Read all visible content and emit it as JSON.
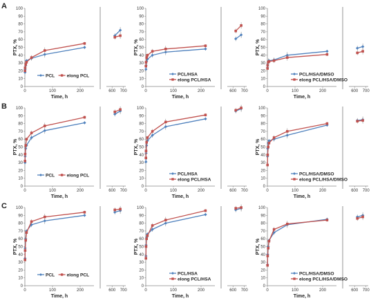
{
  "figure": {
    "row_labels": [
      "A",
      "B",
      "C"
    ],
    "colors": {
      "series_blue": "#4f81bd",
      "series_red": "#c0504d",
      "axis": "#888888",
      "break_line": "#888888"
    }
  },
  "chart_data": [
    {
      "type": "line",
      "row": "A",
      "col": 1,
      "xlabel": "Time, h",
      "ylabel": "PTX, %",
      "ylim": [
        0,
        100
      ],
      "yticks": [
        0,
        10,
        20,
        30,
        40,
        50,
        60,
        70,
        80,
        90,
        100
      ],
      "xlim_main": [
        0,
        250
      ],
      "xticks_main": [
        0,
        100,
        200
      ],
      "xlim_tail": [
        550,
        720
      ],
      "xticks_tail": [
        600,
        700
      ],
      "legend_position": "bottom",
      "series": [
        {
          "name": "PCL",
          "color": "#4f81bd",
          "x": [
            0.5,
            1,
            3,
            6,
            24,
            72,
            216,
            624,
            672
          ],
          "y": [
            18,
            22,
            27,
            33,
            36,
            41,
            50,
            65,
            72
          ]
        },
        {
          "name": "elong PCL",
          "color": "#c0504d",
          "x": [
            0.5,
            1,
            3,
            6,
            24,
            72,
            216,
            624,
            672
          ],
          "y": [
            20,
            24,
            28,
            31,
            37,
            46,
            55,
            63,
            65
          ]
        }
      ]
    },
    {
      "type": "line",
      "row": "A",
      "col": 2,
      "xlabel": "Time, h",
      "ylabel": "PTX, %",
      "ylim": [
        0,
        100
      ],
      "yticks": [
        0,
        10,
        20,
        30,
        40,
        50,
        60,
        70,
        80,
        90,
        100
      ],
      "xlim_main": [
        0,
        250
      ],
      "xticks_main": [
        0,
        100,
        200
      ],
      "xlim_tail": [
        550,
        720
      ],
      "xticks_tail": [
        600,
        700
      ],
      "legend_position": "bottom",
      "series": [
        {
          "name": "PCL/HSA",
          "color": "#4f81bd",
          "x": [
            0.5,
            1,
            3,
            6,
            24,
            72,
            216,
            624,
            672
          ],
          "y": [
            22,
            27,
            32,
            35,
            40,
            44,
            48,
            61,
            66
          ]
        },
        {
          "name": "elong PCL/HSA",
          "color": "#c0504d",
          "x": [
            0.5,
            1,
            3,
            6,
            24,
            72,
            216,
            624,
            672
          ],
          "y": [
            26,
            31,
            37,
            40,
            45,
            48,
            52,
            71,
            78
          ]
        }
      ]
    },
    {
      "type": "line",
      "row": "A",
      "col": 3,
      "xlabel": "Time, h",
      "ylabel": "PTX, %",
      "ylim": [
        0,
        100
      ],
      "yticks": [
        0,
        10,
        20,
        30,
        40,
        50,
        60,
        70,
        80,
        90,
        100
      ],
      "xlim_main": [
        0,
        250
      ],
      "xticks_main": [
        0,
        100,
        200
      ],
      "xlim_tail": [
        550,
        720
      ],
      "xticks_tail": [
        600,
        700
      ],
      "legend_position": "bottom",
      "series": [
        {
          "name": "PCL/HSA/DMSO",
          "color": "#4f81bd",
          "x": [
            0.5,
            1,
            3,
            6,
            24,
            72,
            216,
            624,
            672
          ],
          "y": [
            24,
            28,
            32,
            33,
            34,
            40,
            45,
            49,
            51
          ]
        },
        {
          "name": "elong PCL/HSA/DMSO",
          "color": "#c0504d",
          "x": [
            0.5,
            1,
            3,
            6,
            24,
            72,
            216,
            624,
            672
          ],
          "y": [
            23,
            27,
            31,
            32,
            33,
            37,
            41,
            43,
            45
          ]
        }
      ]
    },
    {
      "type": "line",
      "row": "B",
      "col": 1,
      "xlabel": "Time, h",
      "ylabel": "PTX, %",
      "ylim": [
        0,
        100
      ],
      "yticks": [
        0,
        10,
        20,
        30,
        40,
        50,
        60,
        70,
        80,
        90,
        100
      ],
      "xlim_main": [
        0,
        250
      ],
      "xticks_main": [
        0,
        100,
        200
      ],
      "xlim_tail": [
        550,
        720
      ],
      "xticks_tail": [
        600,
        700
      ],
      "legend_position": "bottom",
      "series": [
        {
          "name": "PCL",
          "color": "#4f81bd",
          "x": [
            0.5,
            1,
            3,
            6,
            24,
            72,
            216,
            624,
            672
          ],
          "y": [
            30,
            38,
            48,
            52,
            62,
            71,
            81,
            92,
            96
          ]
        },
        {
          "name": "elong PCL",
          "color": "#c0504d",
          "x": [
            0.5,
            1,
            3,
            6,
            24,
            72,
            216,
            624,
            672
          ],
          "y": [
            32,
            41,
            52,
            60,
            68,
            77,
            88,
            95,
            98
          ]
        }
      ]
    },
    {
      "type": "line",
      "row": "B",
      "col": 2,
      "xlabel": "Time, h",
      "ylabel": "PTX, %",
      "ylim": [
        0,
        100
      ],
      "yticks": [
        0,
        10,
        20,
        30,
        40,
        50,
        60,
        70,
        80,
        90,
        100
      ],
      "xlim_main": [
        0,
        250
      ],
      "xticks_main": [
        0,
        100,
        200
      ],
      "xlim_tail": [
        550,
        720
      ],
      "xticks_tail": [
        600,
        700
      ],
      "legend_position": "bottom",
      "series": [
        {
          "name": "PCL/HSA",
          "color": "#4f81bd",
          "x": [
            0.5,
            1,
            3,
            6,
            24,
            72,
            216,
            624,
            672
          ],
          "y": [
            31,
            42,
            52,
            58,
            65,
            76,
            86,
            96,
            99
          ]
        },
        {
          "name": "elong PCL/HSA",
          "color": "#c0504d",
          "x": [
            0.5,
            1,
            3,
            6,
            24,
            72,
            216,
            624,
            672
          ],
          "y": [
            36,
            45,
            56,
            62,
            70,
            82,
            91,
            97,
            100
          ]
        }
      ]
    },
    {
      "type": "line",
      "row": "B",
      "col": 3,
      "xlabel": "Time, h",
      "ylabel": "PTX, %",
      "ylim": [
        0,
        100
      ],
      "yticks": [
        0,
        10,
        20,
        30,
        40,
        50,
        60,
        70,
        80,
        90,
        100
      ],
      "xlim_main": [
        0,
        250
      ],
      "xticks_main": [
        0,
        100,
        200
      ],
      "xlim_tail": [
        550,
        720
      ],
      "xticks_tail": [
        600,
        700
      ],
      "legend_position": "bottom",
      "series": [
        {
          "name": "PCL/HSA/DMSO",
          "color": "#4f81bd",
          "x": [
            0.5,
            1,
            3,
            6,
            24,
            72,
            216,
            624,
            672
          ],
          "y": [
            38,
            48,
            55,
            58,
            60,
            65,
            78,
            84,
            85
          ]
        },
        {
          "name": "elong PCL/HSA/DMSO",
          "color": "#c0504d",
          "x": [
            0.5,
            1,
            3,
            6,
            24,
            72,
            216,
            624,
            672
          ],
          "y": [
            27,
            40,
            50,
            55,
            62,
            70,
            80,
            83,
            84
          ]
        }
      ]
    },
    {
      "type": "line",
      "row": "C",
      "col": 1,
      "xlabel": "Time, h",
      "ylabel": "PTX, %",
      "ylim": [
        0,
        100
      ],
      "yticks": [
        0,
        10,
        20,
        30,
        40,
        50,
        60,
        70,
        80,
        90,
        100
      ],
      "xlim_main": [
        0,
        250
      ],
      "xticks_main": [
        0,
        100,
        200
      ],
      "xlim_tail": [
        550,
        720
      ],
      "xticks_tail": [
        600,
        700
      ],
      "legend_position": "bottom",
      "series": [
        {
          "name": "PCL",
          "color": "#4f81bd",
          "x": [
            0.5,
            1,
            3,
            6,
            24,
            72,
            216,
            624,
            672
          ],
          "y": [
            35,
            48,
            60,
            70,
            78,
            83,
            90,
            94,
            96
          ]
        },
        {
          "name": "elong PCL",
          "color": "#c0504d",
          "x": [
            0.5,
            1,
            3,
            6,
            24,
            72,
            216,
            624,
            672
          ],
          "y": [
            33,
            45,
            58,
            68,
            82,
            88,
            94,
            97,
            98
          ]
        }
      ]
    },
    {
      "type": "line",
      "row": "C",
      "col": 2,
      "xlabel": "Time, h",
      "ylabel": "PTX, %",
      "ylim": [
        0,
        100
      ],
      "yticks": [
        0,
        10,
        20,
        30,
        40,
        50,
        60,
        70,
        80,
        90,
        100
      ],
      "xlim_main": [
        0,
        250
      ],
      "xticks_main": [
        0,
        100,
        200
      ],
      "xlim_tail": [
        550,
        720
      ],
      "xticks_tail": [
        600,
        700
      ],
      "legend_position": "bottom",
      "series": [
        {
          "name": "PCL/HSA",
          "color": "#4f81bd",
          "x": [
            0.5,
            1,
            3,
            6,
            24,
            72,
            216,
            624,
            672
          ],
          "y": [
            38,
            52,
            62,
            66,
            72,
            80,
            91,
            97,
            99
          ]
        },
        {
          "name": "elong PCL/HSA",
          "color": "#c0504d",
          "x": [
            0.5,
            1,
            3,
            6,
            24,
            72,
            216,
            624,
            672
          ],
          "y": [
            35,
            50,
            60,
            64,
            77,
            84,
            96,
            99,
            100
          ]
        }
      ]
    },
    {
      "type": "line",
      "row": "C",
      "col": 3,
      "xlabel": "Time, h",
      "ylabel": "PTX, %",
      "ylim": [
        0,
        100
      ],
      "yticks": [
        0,
        10,
        20,
        30,
        40,
        50,
        60,
        70,
        80,
        90,
        100
      ],
      "xlim_main": [
        0,
        250
      ],
      "xticks_main": [
        0,
        100,
        200
      ],
      "xlim_tail": [
        550,
        720
      ],
      "xticks_tail": [
        600,
        700
      ],
      "legend_position": "bottom",
      "series": [
        {
          "name": "PCL/HSA/DMSO",
          "color": "#4f81bd",
          "x": [
            0.5,
            1,
            3,
            6,
            24,
            72,
            216,
            624,
            672
          ],
          "y": [
            27,
            40,
            50,
            58,
            68,
            78,
            85,
            88,
            90
          ]
        },
        {
          "name": "elong PCL/HSA/DMSO",
          "color": "#c0504d",
          "x": [
            0.5,
            1,
            3,
            6,
            24,
            72,
            216,
            624,
            672
          ],
          "y": [
            26,
            38,
            48,
            57,
            72,
            79,
            84,
            86,
            88
          ]
        }
      ]
    }
  ]
}
